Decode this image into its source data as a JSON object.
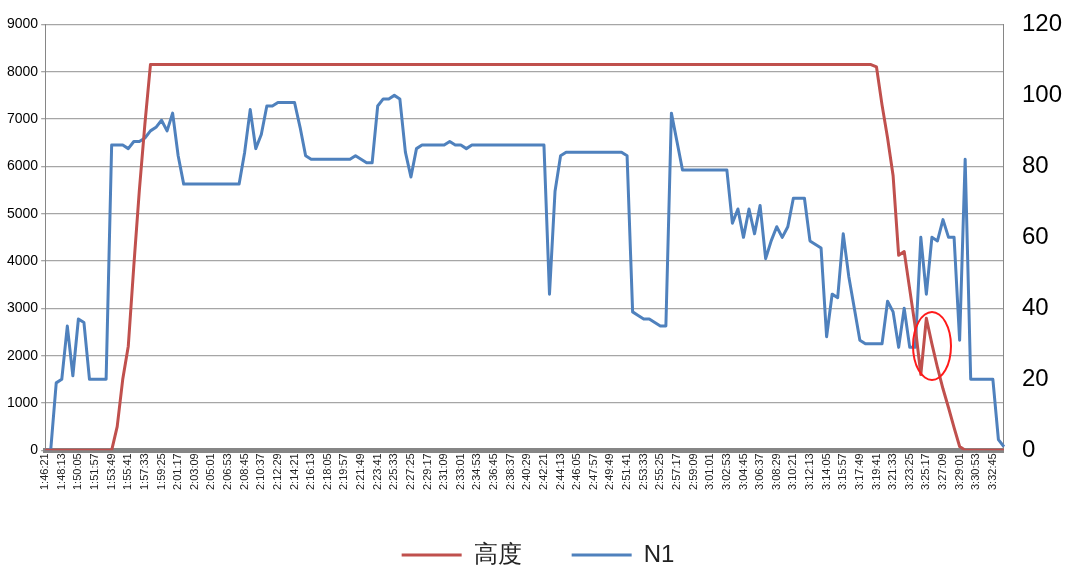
{
  "chart_data": {
    "type": "line",
    "categories": [
      "1:46:21",
      null,
      null,
      "1:48:13",
      null,
      null,
      "1:50:05",
      null,
      null,
      "1:51:57",
      null,
      null,
      "1:53:49",
      null,
      null,
      "1:55:41",
      null,
      null,
      "1:57:33",
      null,
      null,
      "1:59:25",
      null,
      null,
      "2:01:17",
      null,
      null,
      "2:03:09",
      null,
      null,
      "2:05:01",
      null,
      null,
      "2:06:53",
      null,
      null,
      "2:08:45",
      null,
      null,
      "2:10:37",
      null,
      null,
      "2:12:29",
      null,
      null,
      "2:14:21",
      null,
      null,
      "2:16:13",
      null,
      null,
      "2:18:05",
      null,
      null,
      "2:19:57",
      null,
      null,
      "2:21:49",
      null,
      null,
      "2:23:41",
      null,
      null,
      "2:25:33",
      null,
      null,
      "2:27:25",
      null,
      null,
      "2:29:17",
      null,
      null,
      "2:31:09",
      null,
      null,
      "2:33:01",
      null,
      null,
      "2:34:53",
      null,
      null,
      "2:36:45",
      null,
      null,
      "2:38:37",
      null,
      null,
      "2:40:29",
      null,
      null,
      "2:42:21",
      null,
      null,
      "2:44:13",
      null,
      null,
      "2:46:05",
      null,
      null,
      "2:47:57",
      null,
      null,
      "2:49:49",
      null,
      null,
      "2:51:41",
      null,
      null,
      "2:53:33",
      null,
      null,
      "2:55:25",
      null,
      null,
      "2:57:17",
      null,
      null,
      "2:59:09",
      null,
      null,
      "3:01:01",
      null,
      null,
      "3:02:53",
      null,
      null,
      "3:04:45",
      null,
      null,
      "3:06:37",
      null,
      null,
      "3:08:29",
      null,
      null,
      "3:10:21",
      null,
      null,
      "3:12:13",
      null,
      null,
      "3:14:05",
      null,
      null,
      "3:15:57",
      null,
      null,
      "3:17:49",
      null,
      null,
      "3:19:41",
      null,
      null,
      "3:21:33",
      null,
      null,
      "3:23:25",
      null,
      null,
      "3:25:17",
      null,
      null,
      "3:27:09",
      null,
      null,
      "3:29:01",
      null,
      null,
      "3:30:53",
      null,
      null,
      "3:32:45",
      null,
      null
    ],
    "series": [
      {
        "name": "高度",
        "color": "#c0504d",
        "values": [
          0,
          0,
          0,
          0,
          0,
          0,
          0,
          0,
          0,
          0,
          0,
          0,
          0,
          500,
          1500,
          2200,
          3900,
          5500,
          6900,
          8150,
          8150,
          8150,
          8150,
          8150,
          8150,
          8150,
          8150,
          8150,
          8150,
          8150,
          8150,
          8150,
          8150,
          8150,
          8150,
          8150,
          8150,
          8150,
          8150,
          8150,
          8150,
          8150,
          8150,
          8150,
          8150,
          8150,
          8150,
          8150,
          8150,
          8150,
          8150,
          8150,
          8150,
          8150,
          8150,
          8150,
          8150,
          8150,
          8150,
          8150,
          8150,
          8150,
          8150,
          8150,
          8150,
          8150,
          8150,
          8150,
          8150,
          8150,
          8150,
          8150,
          8150,
          8150,
          8150,
          8150,
          8150,
          8150,
          8150,
          8150,
          8150,
          8150,
          8150,
          8150,
          8150,
          8150,
          8150,
          8150,
          8150,
          8150,
          8150,
          8150,
          8150,
          8150,
          8150,
          8150,
          8150,
          8150,
          8150,
          8150,
          8150,
          8150,
          8150,
          8150,
          8150,
          8150,
          8150,
          8150,
          8150,
          8150,
          8150,
          8150,
          8150,
          8150,
          8150,
          8150,
          8150,
          8150,
          8150,
          8150,
          8150,
          8150,
          8150,
          8150,
          8150,
          8150,
          8150,
          8150,
          8150,
          8150,
          8150,
          8150,
          8150,
          8150,
          8150,
          8150,
          8150,
          8150,
          8150,
          8150,
          8150,
          8150,
          8150,
          8150,
          8150,
          8150,
          8150,
          8150,
          8150,
          8150,
          8100,
          7300,
          6600,
          5800,
          4120,
          4200,
          3400,
          2600,
          1600,
          2790,
          2250,
          1750,
          1300,
          900,
          480,
          80,
          0,
          0,
          0,
          0,
          0,
          0,
          0,
          0
        ]
      },
      {
        "name": "N1",
        "color": "#4f81bd",
        "axis": "y2",
        "values": [
          0,
          0,
          19,
          20,
          35,
          21,
          37,
          36,
          20,
          20,
          20,
          20,
          86,
          86,
          86,
          85,
          87,
          87,
          88,
          90,
          91,
          93,
          90,
          95,
          83,
          75,
          75,
          75,
          75,
          75,
          75,
          75,
          75,
          75,
          75,
          75,
          84,
          96,
          85,
          89,
          97,
          97,
          98,
          98,
          98,
          98,
          91,
          83,
          82,
          82,
          82,
          82,
          82,
          82,
          82,
          82,
          83,
          82,
          81,
          81,
          97,
          99,
          99,
          100,
          99,
          84,
          77,
          85,
          86,
          86,
          86,
          86,
          86,
          87,
          86,
          86,
          85,
          86,
          86,
          86,
          86,
          86,
          86,
          86,
          86,
          86,
          86,
          86,
          86,
          86,
          86,
          44,
          73,
          83,
          84,
          84,
          84,
          84,
          84,
          84,
          84,
          84,
          84,
          84,
          84,
          83,
          39,
          38,
          37,
          37,
          36,
          35,
          35,
          95,
          87,
          79,
          79,
          79,
          79,
          79,
          79,
          79,
          79,
          79,
          64,
          68,
          60,
          68,
          61,
          69,
          54,
          59,
          63,
          60,
          63,
          71,
          71,
          71,
          59,
          58,
          57,
          32,
          44,
          43,
          61,
          49,
          40,
          31,
          30,
          30,
          30,
          30,
          42,
          39,
          29,
          40,
          29,
          29,
          60,
          44,
          60,
          59,
          65,
          60,
          60,
          31,
          82,
          20,
          20,
          20,
          20,
          20,
          3,
          1
        ]
      }
    ],
    "ylim": [
      0,
      9000
    ],
    "yticks": [
      0,
      1000,
      2000,
      3000,
      4000,
      5000,
      6000,
      7000,
      8000,
      9000
    ],
    "y2lim": [
      0,
      120
    ],
    "y2ticks": [
      0,
      20,
      40,
      60,
      80,
      100,
      120
    ],
    "grid": "y",
    "legend": "bottom"
  }
}
